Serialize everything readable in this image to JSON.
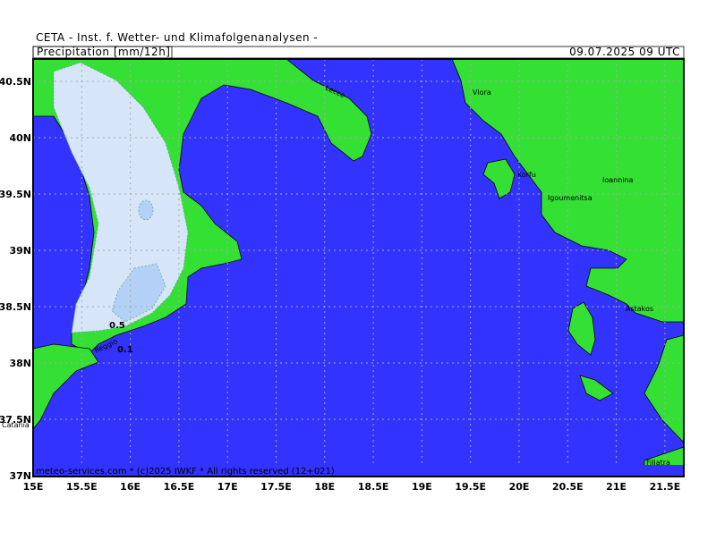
{
  "header": {
    "title": "CETA - Inst. f. Wetter- und Klimafolgenanalysen -",
    "product": "Precipitation [mm/12h]",
    "valid_time": "09.07.2025 09 UTC"
  },
  "map": {
    "lat_labels": [
      "40.5N",
      "40N",
      "39.5N",
      "39N",
      "38.5N",
      "38N",
      "37.5N",
      "37N"
    ],
    "lon_labels": [
      "15E",
      "15.5E",
      "16E",
      "16.5E",
      "17E",
      "17.5E",
      "18E",
      "18.5E",
      "19E",
      "19.5E",
      "20E",
      "20.5E",
      "21E",
      "21.5E"
    ],
    "places": [
      "Lecce",
      "Vlora",
      "Korfu",
      "Igoumenitsa",
      "Ioannina",
      "Astakos",
      "Reggio",
      "Catania",
      "Filiatra"
    ],
    "contour_labels": [
      "0.5",
      "0.1"
    ]
  },
  "footer": "meteo-services.com * (c)2025 IWKF * All rights reserved (12+021)"
}
